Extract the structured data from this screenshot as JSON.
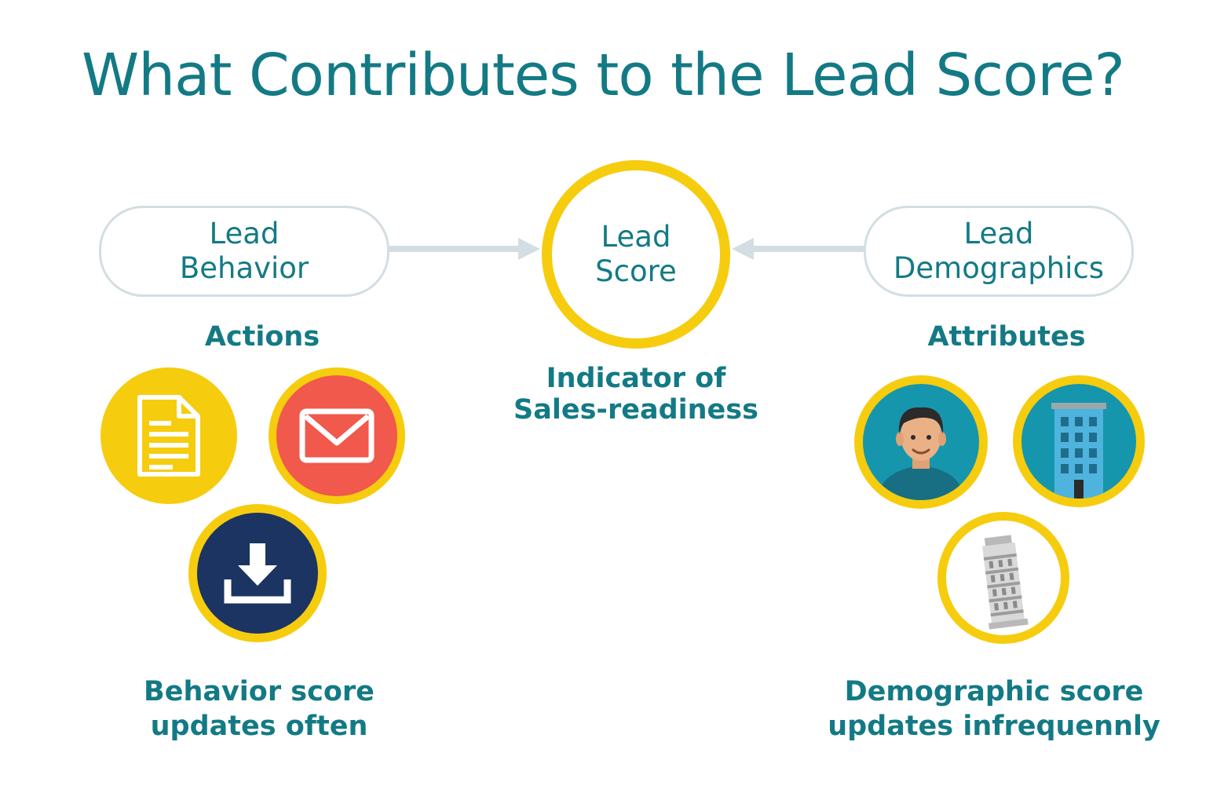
{
  "title": "What Contributes to the Lead Score?",
  "left_box": {
    "line1": "Lead",
    "line2": "Behavior"
  },
  "center": {
    "line1": "Lead",
    "line2": "Score"
  },
  "right_box": {
    "line1": "Lead",
    "line2": "Demographics"
  },
  "actions_heading": "Actions",
  "attributes_heading": "Attributes",
  "indicator": {
    "line1": "Indicator of",
    "line2": "Sales-readiness"
  },
  "behavior_caption": {
    "line1": "Behavior score",
    "line2": "updates often"
  },
  "demographic_caption": {
    "line1": "Demographic score",
    "line2": "updates infrequennly"
  },
  "icons": {
    "actions": [
      "document-icon",
      "email-icon",
      "download-icon"
    ],
    "attributes": [
      "person-icon",
      "building-icon",
      "leaning-tower-icon"
    ]
  },
  "colors": {
    "teal_text": "#137a85",
    "yellow_ring": "#f6cc0e",
    "email_red": "#f0594b",
    "download_navy": "#1b3461",
    "attribute_blue": "#1596ad",
    "pill_border": "#d3dee2"
  }
}
